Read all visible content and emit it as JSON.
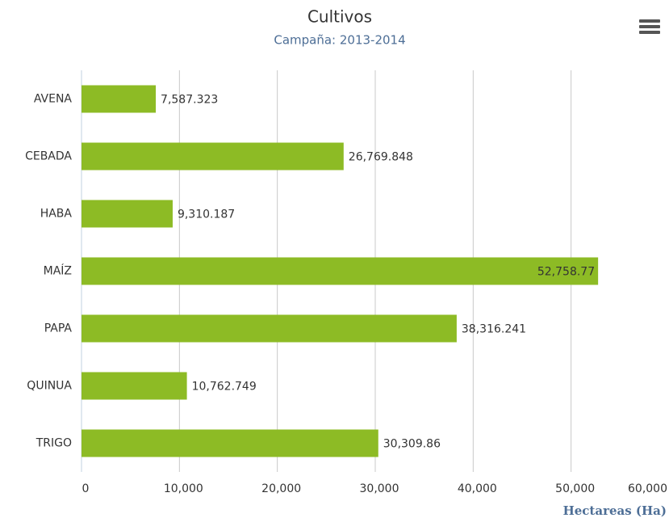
{
  "chart_data": {
    "type": "bar",
    "orientation": "horizontal",
    "title": "Cultivos",
    "subtitle": "Campaña: 2013-2014",
    "categories": [
      "AVENA",
      "CEBADA",
      "HABA",
      "MAÍZ",
      "PAPA",
      "QUINUA",
      "TRIGO"
    ],
    "values": [
      7587.323,
      26769.848,
      9310.187,
      52758.77,
      38316.241,
      10762.749,
      30309.86
    ],
    "value_labels": [
      "7,587.323",
      "26,769.848",
      "9,310.187",
      "52,758.77",
      "38,316.241",
      "10,762.749",
      "30,309.86"
    ],
    "color": "#8dbb25",
    "xlabel": "Hectareas (Ha)",
    "xlim": [
      0,
      60000
    ],
    "xticks": [
      0,
      {
        "value": 10000,
        "label": "10,000"
      },
      {
        "value": 20000,
        "label": "20,000"
      },
      {
        "value": 30000,
        "label": "30,000"
      },
      {
        "value": 40000,
        "label": "40,000"
      },
      {
        "value": 50000,
        "label": "50,000"
      },
      {
        "value": 60000,
        "label": "60,000"
      }
    ],
    "grid": true
  }
}
